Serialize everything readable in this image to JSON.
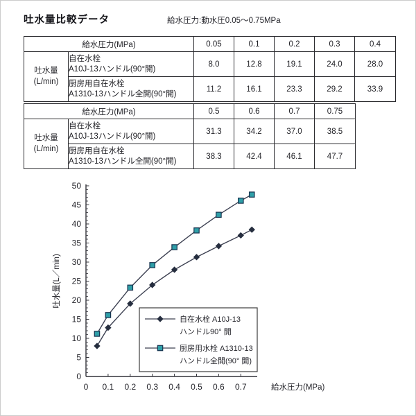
{
  "page": {
    "title": "吐水量比較データ",
    "subtitle": "給水圧力:動水圧0.05〜0.75MPa"
  },
  "tables": [
    {
      "pressure_header": "給水圧力(MPa)",
      "row_header_line1": "吐水量",
      "row_header_line2": "(L/min)",
      "columns": [
        "0.05",
        "0.1",
        "0.2",
        "0.3",
        "0.4"
      ],
      "rows": [
        {
          "label_line1": "自在水栓",
          "label_line2": "A10J-13ハンドル(90°開)",
          "values": [
            "8.0",
            "12.8",
            "19.1",
            "24.0",
            "28.0"
          ]
        },
        {
          "label_line1": "厨房用自在水栓",
          "label_line2": "A1310-13ハンドル全開(90°開)",
          "values": [
            "11.2",
            "16.1",
            "23.3",
            "29.2",
            "33.9"
          ]
        }
      ]
    },
    {
      "pressure_header": "給水圧力(MPa)",
      "row_header_line1": "吐水量",
      "row_header_line2": "(L/min)",
      "columns": [
        "0.5",
        "0.6",
        "0.7",
        "0.75"
      ],
      "rows": [
        {
          "label_line1": "自在水栓",
          "label_line2": "A10J-13ハンドル(90°開)",
          "values": [
            "31.3",
            "34.2",
            "37.0",
            "38.5"
          ]
        },
        {
          "label_line1": "厨房用自在水栓",
          "label_line2": "A1310-13ハンドル全開(90°開)",
          "values": [
            "38.3",
            "42.4",
            "46.1",
            "47.7"
          ]
        }
      ]
    }
  ],
  "chart_data": {
    "type": "line",
    "title": "",
    "xlabel": "給水圧力(MPa)",
    "ylabel": "吐水量(L／min)",
    "xlim": [
      0,
      0.78
    ],
    "ylim": [
      0,
      50
    ],
    "grid": false,
    "legend_position": "inside lower right",
    "x": [
      0.05,
      0.1,
      0.2,
      0.3,
      0.4,
      0.5,
      0.6,
      0.7,
      0.75
    ],
    "x_ticks": [
      0,
      0.1,
      0.2,
      0.3,
      0.4,
      0.5,
      0.6,
      0.7
    ],
    "x_tick_labels": [
      "0",
      "0.1",
      "0.2",
      "0.3",
      "0.4",
      "0.5",
      "0.6",
      "0.7"
    ],
    "y_ticks": [
      0,
      5,
      10,
      15,
      20,
      25,
      30,
      35,
      40,
      45,
      50
    ],
    "y_minor_step": 1,
    "series": [
      {
        "name": "自在水栓 A10J-13 ハンドル90° 開",
        "values": [
          8.0,
          12.8,
          19.1,
          24.0,
          28.0,
          31.3,
          34.2,
          37.0,
          38.5
        ],
        "marker": "diamond",
        "line_color": "#3d4152",
        "marker_fill": "#262e3f",
        "marker_stroke": "#262e3f"
      },
      {
        "name": "厨房用水栓 A1310-13 ハンドル全開(90° 開)",
        "values": [
          11.2,
          16.1,
          23.3,
          29.2,
          33.9,
          38.3,
          42.4,
          46.1,
          47.7
        ],
        "marker": "square",
        "line_color": "#3d4152",
        "marker_fill": "#2f9fa8",
        "marker_stroke": "#17324e"
      }
    ],
    "legend": [
      {
        "line1": "自在水栓 A10J-13",
        "line2": "ハンドル90° 開"
      },
      {
        "line1": "厨房用水栓 A1310-13",
        "line2": "ハンドル全開(90° 開)"
      }
    ],
    "axis_color": "#33333a",
    "text_color": "#26262c"
  }
}
